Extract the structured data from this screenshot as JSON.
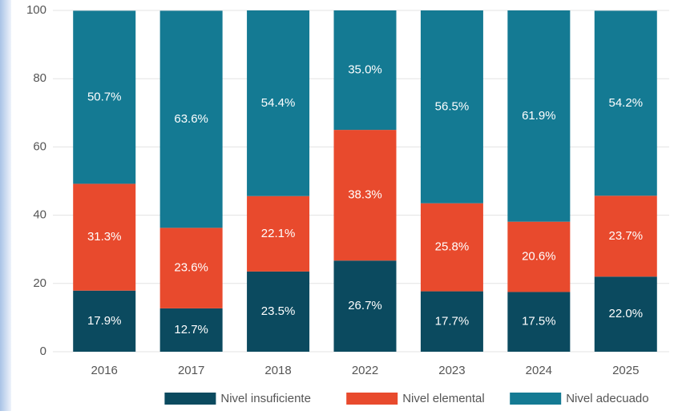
{
  "chart_data": {
    "type": "stacked_bar",
    "categories": [
      "2016",
      "2017",
      "2018",
      "2022",
      "2023",
      "2024",
      "2025"
    ],
    "series": [
      {
        "name": "Nivel insuficiente",
        "color": "#0b4a5f",
        "values": [
          17.9,
          12.7,
          23.5,
          26.7,
          17.7,
          17.5,
          22.0
        ],
        "value_labels": [
          "17.9%",
          "12.7%",
          "23.5%",
          "26.7%",
          "17.7%",
          "17.5%",
          "22.0%"
        ]
      },
      {
        "name": "Nivel elemental",
        "color": "#e84a2d",
        "values": [
          31.3,
          23.6,
          22.1,
          38.3,
          25.8,
          20.6,
          23.7
        ],
        "value_labels": [
          "31.3%",
          "23.6%",
          "22.1%",
          "38.3%",
          "25.8%",
          "20.6%",
          "23.7%"
        ]
      },
      {
        "name": "Nivel adecuado",
        "color": "#147a93",
        "values": [
          50.7,
          63.6,
          54.4,
          35.0,
          56.5,
          61.9,
          54.2
        ],
        "value_labels": [
          "50.7%",
          "63.6%",
          "54.4%",
          "35.0%",
          "56.5%",
          "61.9%",
          "54.2%"
        ]
      }
    ],
    "ylim": [
      0,
      100
    ],
    "yticks": [
      0,
      20,
      40,
      60,
      80,
      100
    ],
    "grid": true,
    "legend": "bottom"
  }
}
